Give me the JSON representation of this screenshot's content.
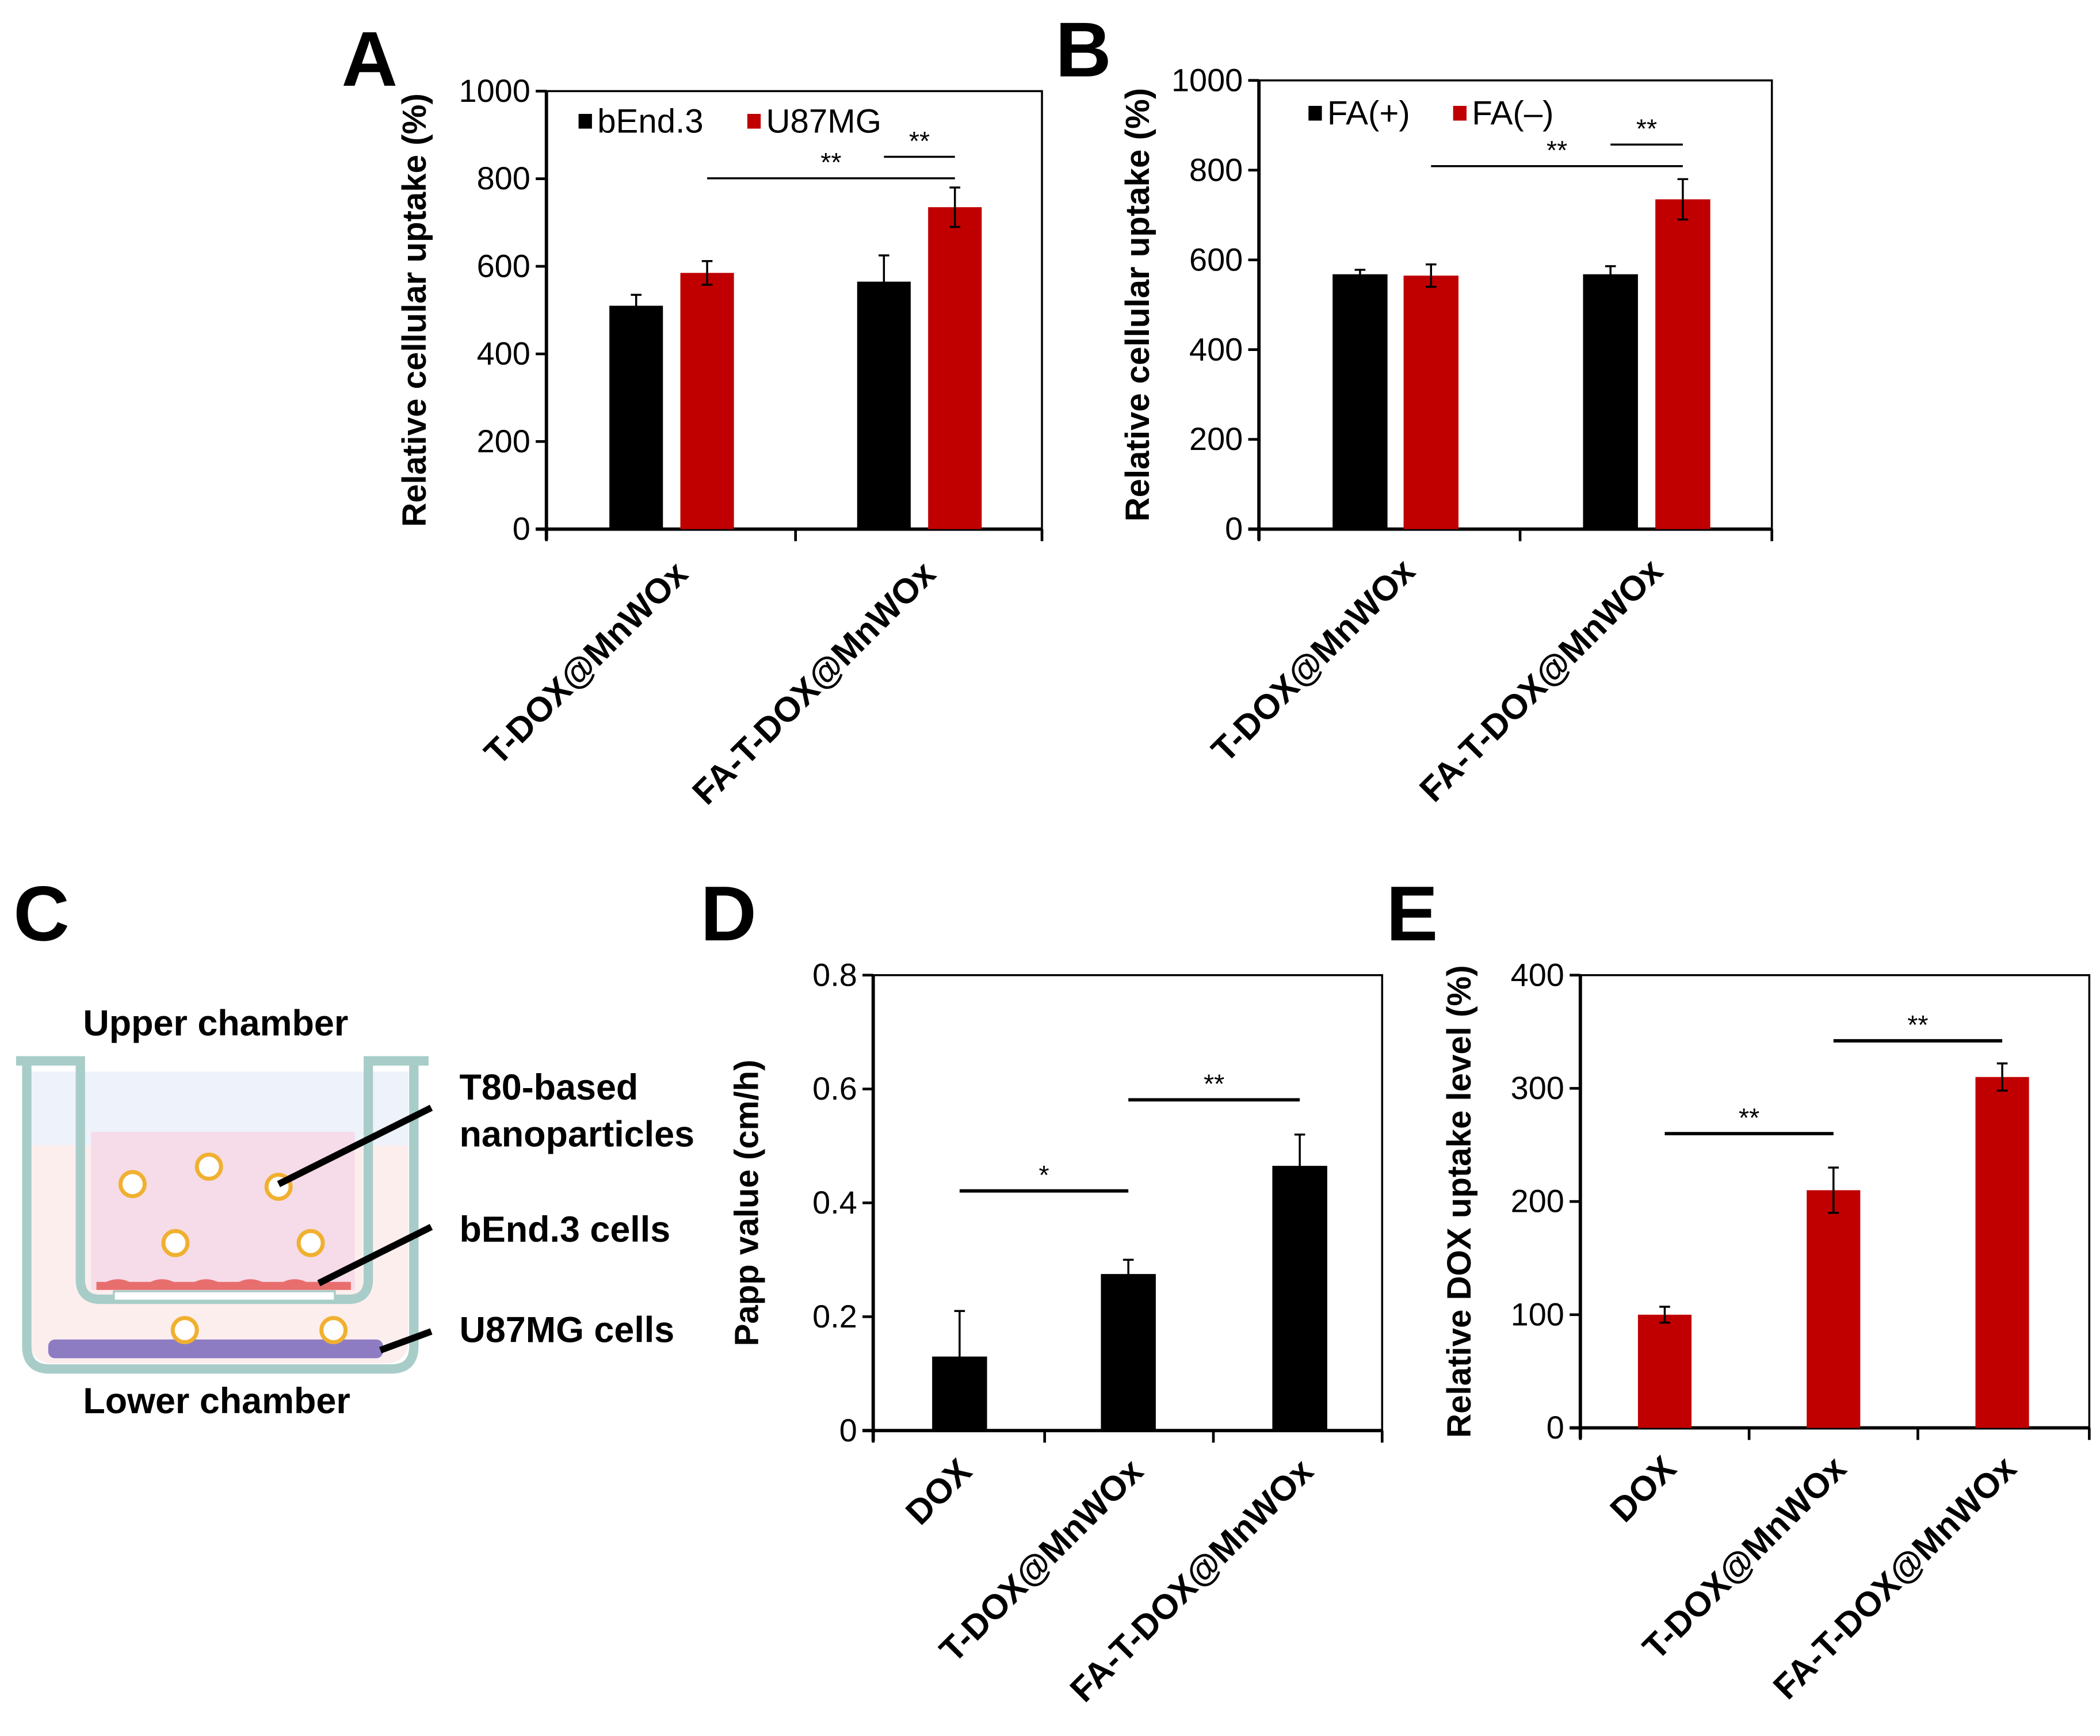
{
  "panels": {
    "a": "A",
    "b": "B",
    "c": "C",
    "d": "D",
    "e": "E"
  },
  "colors": {
    "black": "#000000",
    "red": "#c00000"
  },
  "diagram": {
    "upper_chamber": "Upper chamber",
    "nanoparticles_line1": "T80-based",
    "nanoparticles_line2": "nanoparticles",
    "bend3_cells": "bEnd.3 cells",
    "u87mg_cells": "U87MG cells",
    "lower_chamber": "Lower chamber"
  },
  "chart_data": [
    {
      "panel": "A",
      "type": "bar",
      "ylabel": "Relative cellular uptake (%)",
      "ylim": [
        0,
        1000
      ],
      "yticks": [
        "0",
        "200",
        "400",
        "600",
        "800",
        "1000"
      ],
      "categories": [
        "T-DOX@MnWOx",
        "FA-T-DOX@MnWOx"
      ],
      "legend_position": "top-left",
      "series": [
        {
          "name": "bEnd.3",
          "color": "#000000",
          "values": [
            510,
            565
          ],
          "errors": [
            25,
            60
          ]
        },
        {
          "name": "U87MG",
          "color": "#c00000",
          "values": [
            585,
            735
          ],
          "errors": [
            27,
            45
          ]
        }
      ],
      "significance": [
        {
          "from": [
            1,
            0
          ],
          "to": [
            1,
            1
          ],
          "y": 801,
          "label": "**"
        },
        {
          "from": [
            0,
            1
          ],
          "to": [
            1,
            1
          ],
          "y": 850,
          "label": "**"
        }
      ]
    },
    {
      "panel": "B",
      "type": "bar",
      "ylabel": "Relative cellular uptake (%)",
      "ylim": [
        0,
        1000
      ],
      "yticks": [
        "0",
        "200",
        "400",
        "600",
        "800",
        "1000"
      ],
      "categories": [
        "T-DOX@MnWOx",
        "FA-T-DOX@MnWOx"
      ],
      "legend_position": "top-left",
      "series": [
        {
          "name": "FA(+)",
          "color": "#000000",
          "values": [
            568,
            568
          ],
          "errors": [
            10,
            18
          ]
        },
        {
          "name": "FA(–)",
          "color": "#c00000",
          "values": [
            565,
            735
          ],
          "errors": [
            25,
            45
          ]
        }
      ],
      "significance": [
        {
          "from": [
            1,
            0
          ],
          "to": [
            1,
            1
          ],
          "y": 809,
          "label": "**"
        },
        {
          "from": [
            0,
            1
          ],
          "to": [
            1,
            1
          ],
          "y": 857,
          "label": "**"
        }
      ]
    },
    {
      "panel": "D",
      "type": "bar",
      "ylabel": "Papp value (cm/h)",
      "ylim": [
        0,
        0.8
      ],
      "yticks": [
        "0",
        "0.2",
        "0.4",
        "0.6",
        "0.8"
      ],
      "categories": [
        "DOX",
        "T-DOX@MnWOx",
        "FA-T-DOX@MnWOx"
      ],
      "series": [
        {
          "name": "Papp",
          "color": "#000000",
          "values": [
            0.13,
            0.275,
            0.465
          ],
          "errors": [
            0.08,
            0.025,
            0.055
          ]
        }
      ],
      "significance": [
        {
          "from": [
            0,
            0
          ],
          "to": [
            0,
            1
          ],
          "y": 0.421,
          "label": "*"
        },
        {
          "from": [
            0,
            1
          ],
          "to": [
            0,
            2
          ],
          "y": 0.581,
          "label": "**"
        }
      ]
    },
    {
      "panel": "E",
      "type": "bar",
      "ylabel": "Relative DOX uptake level (%)",
      "ylim": [
        0,
        400
      ],
      "yticks": [
        "0",
        "100",
        "200",
        "300",
        "400"
      ],
      "categories": [
        "DOX",
        "T-DOX@MnWOx",
        "FA-T-DOX@MnWOx"
      ],
      "series": [
        {
          "name": "DOX uptake",
          "color": "#c00000",
          "values": [
            100,
            210,
            310
          ],
          "errors": [
            7,
            20,
            12
          ]
        }
      ],
      "significance": [
        {
          "from": [
            0,
            0
          ],
          "to": [
            0,
            1
          ],
          "y": 260,
          "label": "**"
        },
        {
          "from": [
            0,
            1
          ],
          "to": [
            0,
            2
          ],
          "y": 342,
          "label": "**"
        }
      ]
    }
  ]
}
